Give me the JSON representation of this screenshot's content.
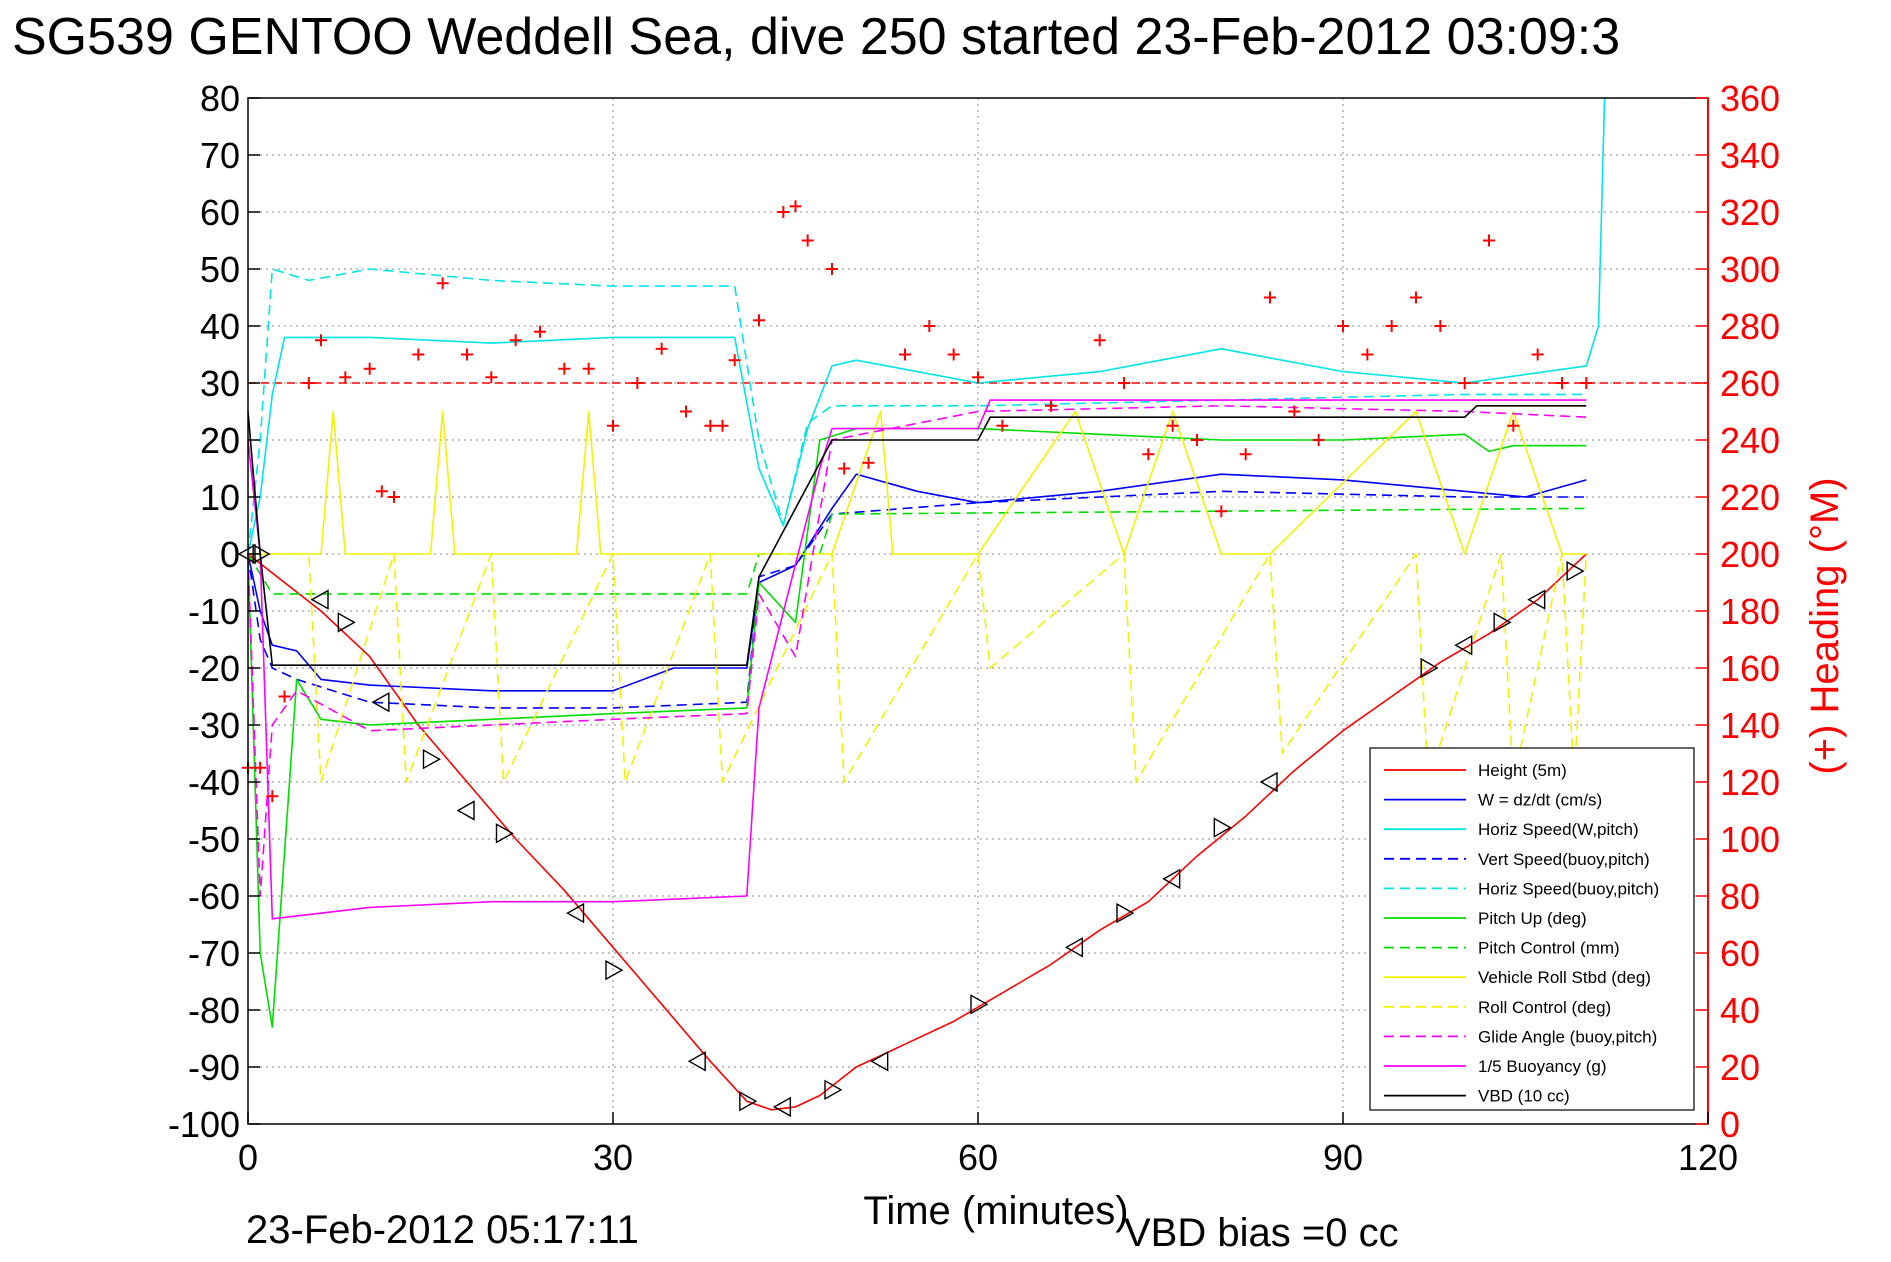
{
  "chart_data": {
    "type": "line",
    "title": "SG539 GENTOO Weddell Sea, dive 250 started 23-Feb-2012 03:09:3",
    "xlabel": "Time (minutes)",
    "ylabel_right": "(+) Heading (°M)",
    "footer_timestamp": "23-Feb-2012 05:17:11",
    "footer_vbd": "VBD bias =0 cc",
    "xlim": [
      0,
      120
    ],
    "ylim": [
      -100,
      80
    ],
    "y2lim": [
      0,
      360
    ],
    "grid": true,
    "legend_position": "bottom-right",
    "x_ticks": [
      "0",
      "30",
      "60",
      "90",
      "120"
    ],
    "y_ticks": [
      "80",
      "70",
      "60",
      "50",
      "40",
      "30",
      "20",
      "10",
      "0",
      "-10",
      "-20",
      "-30",
      "-40",
      "-50",
      "-60",
      "-70",
      "-80",
      "-90",
      "-100"
    ],
    "y2_ticks": [
      "360",
      "340",
      "320",
      "300",
      "280",
      "260",
      "240",
      "220",
      "200",
      "180",
      "160",
      "140",
      "120",
      "100",
      "80",
      "60",
      "40",
      "20",
      "0"
    ],
    "colors": {
      "red": "#ff0000",
      "blue": "#0000ff",
      "cyan": "#00e5e5",
      "green": "#00dd00",
      "yellow": "#f2f200",
      "magenta": "#ff00ff",
      "black": "#000000"
    },
    "series": [
      {
        "name": "Height (5m)",
        "color": "#ff0000",
        "dash": false,
        "x": [
          0,
          3,
          6,
          10,
          14,
          18,
          22,
          26,
          30,
          34,
          38,
          41,
          43,
          45,
          47,
          50,
          54,
          58,
          62,
          66,
          70,
          74,
          78,
          82,
          86,
          90,
          94,
          98,
          102,
          106,
          110
        ],
        "y": [
          0,
          -5,
          -10,
          -18,
          -30,
          -40,
          -50,
          -59,
          -69,
          -79,
          -89,
          -96,
          -97.5,
          -97,
          -95,
          -90,
          -86,
          -82,
          -77,
          -72,
          -66,
          -61,
          -53,
          -46,
          -38,
          -31,
          -25,
          -19,
          -14,
          -8,
          0
        ]
      },
      {
        "name": "W = dz/dt (cm/s)",
        "color": "#0000ff",
        "dash": false,
        "x": [
          0,
          1,
          2,
          4,
          6,
          10,
          20,
          30,
          35,
          41,
          42,
          45,
          48,
          50,
          55,
          60,
          70,
          80,
          90,
          100,
          105,
          110
        ],
        "y": [
          0,
          -10,
          -16,
          -17,
          -22,
          -23,
          -24,
          -24,
          -20,
          -20,
          -5,
          -2,
          8,
          14,
          11,
          9,
          11,
          14,
          13,
          11,
          10,
          13
        ]
      },
      {
        "name": "Horiz Speed(W,pitch)",
        "color": "#00e5e5",
        "dash": false,
        "x": [
          0,
          1,
          2,
          3,
          10,
          20,
          30,
          40,
          42,
          44,
          46,
          48,
          50,
          60,
          70,
          80,
          90,
          100,
          110,
          111,
          111.5
        ],
        "y": [
          0,
          10,
          28,
          38,
          38,
          37,
          38,
          38,
          15,
          5,
          22,
          33,
          34,
          30,
          32,
          36,
          32,
          30,
          33,
          40,
          80
        ]
      },
      {
        "name": "Vert Speed(buoy,pitch)",
        "color": "#0000ff",
        "dash": true,
        "x": [
          0,
          1,
          2,
          4,
          10,
          20,
          30,
          41,
          42,
          45,
          48,
          60,
          80,
          100,
          110
        ],
        "y": [
          0,
          -15,
          -20,
          -22,
          -26,
          -27,
          -27,
          -26,
          -4,
          -2,
          7,
          9,
          11,
          10,
          10
        ]
      },
      {
        "name": "Horiz Speed(buoy,pitch)",
        "color": "#00e5e5",
        "dash": true,
        "x": [
          0,
          1,
          2,
          5,
          10,
          20,
          30,
          40,
          42,
          44,
          46,
          48,
          60,
          80,
          100,
          110
        ],
        "y": [
          0,
          20,
          50,
          48,
          50,
          48,
          47,
          47,
          20,
          5,
          23,
          26,
          26,
          27,
          28,
          28
        ]
      },
      {
        "name": "Pitch Up (deg)",
        "color": "#00dd00",
        "dash": false,
        "x": [
          0,
          1,
          2,
          4,
          6,
          10,
          20,
          30,
          41,
          42,
          45,
          47,
          50,
          60,
          70,
          80,
          90,
          100,
          102,
          104,
          110
        ],
        "y": [
          0,
          -70,
          -83,
          -22,
          -29,
          -30,
          -29,
          -28,
          -27,
          -5,
          -12,
          20,
          22,
          22,
          21,
          20,
          20,
          21,
          18,
          19,
          19
        ]
      },
      {
        "name": "Pitch Control (mm)",
        "color": "#00dd00",
        "dash": true,
        "x": [
          0,
          2,
          3,
          40,
          41,
          42,
          47,
          48,
          110
        ],
        "y": [
          0,
          -7,
          -7,
          -7,
          -7,
          0,
          0,
          7,
          8
        ]
      },
      {
        "name": "Vehicle Roll Stbd (deg)",
        "color": "#f2f200",
        "dash": false,
        "x": [
          0,
          2,
          6,
          7,
          8,
          12,
          15,
          16,
          17,
          20,
          27,
          28,
          29,
          31,
          38,
          40,
          48,
          52,
          53,
          60,
          68,
          72,
          76,
          80,
          84,
          96,
          100,
          104,
          108,
          110
        ],
        "y": [
          0,
          0,
          0,
          25,
          0,
          0,
          0,
          25,
          0,
          0,
          0,
          25,
          0,
          0,
          0,
          0,
          0,
          25,
          0,
          0,
          25,
          0,
          25,
          0,
          0,
          25,
          0,
          25,
          0,
          0
        ]
      },
      {
        "name": "Roll Control (deg)",
        "color": "#f2f200",
        "dash": true,
        "x": [
          0,
          2,
          5,
          6,
          12,
          13,
          20,
          21,
          30,
          31,
          38,
          39,
          48,
          49,
          60,
          61,
          72,
          73,
          84,
          85,
          96,
          97,
          103,
          104,
          108,
          109,
          110
        ],
        "y": [
          0,
          0,
          0,
          -40,
          0,
          -40,
          0,
          -40,
          0,
          -40,
          0,
          -40,
          0,
          -40,
          0,
          -20,
          0,
          -40,
          0,
          -35,
          0,
          -40,
          0,
          -40,
          0,
          -40,
          0
        ]
      },
      {
        "name": "Glide Angle (buoy,pitch)",
        "color": "#ff00ff",
        "dash": true,
        "x": [
          0,
          1,
          2,
          4,
          10,
          20,
          30,
          41,
          42,
          45,
          48,
          60,
          80,
          100,
          110
        ],
        "y": [
          0,
          -60,
          -30,
          -24,
          -31,
          -30,
          -29,
          -28,
          -7,
          -18,
          20,
          25,
          26,
          25,
          24
        ]
      },
      {
        "name": "1/5 Buoyancy (g)",
        "color": "#ff00ff",
        "dash": false,
        "x": [
          0,
          1,
          2,
          10,
          20,
          30,
          41,
          42,
          47,
          48,
          60,
          61,
          100,
          110
        ],
        "y": [
          20,
          0,
          -64,
          -62,
          -61,
          -61,
          -60,
          -27,
          15,
          22,
          22,
          27,
          27,
          27
        ]
      },
      {
        "name": "VBD (10 cc)",
        "color": "#000000",
        "dash": false,
        "x": [
          0,
          1,
          2,
          41,
          42,
          48,
          60,
          61,
          100,
          101,
          110
        ],
        "y": [
          25,
          0,
          -19.5,
          -19.5,
          -4,
          20,
          20,
          24,
          24,
          26,
          26
        ]
      }
    ],
    "heading": {
      "name": "(+) Heading",
      "axis": "right",
      "color": "#ff0000",
      "x": [
        0,
        1,
        2,
        3,
        5,
        6,
        8,
        10,
        11,
        12,
        14,
        16,
        18,
        20,
        22,
        24,
        26,
        28,
        30,
        32,
        34,
        36,
        38,
        39,
        40,
        42,
        44,
        45,
        46,
        48,
        49,
        51,
        54,
        56,
        58,
        60,
        62,
        66,
        70,
        72,
        74,
        76,
        78,
        80,
        82,
        84,
        86,
        88,
        90,
        92,
        94,
        96,
        98,
        100,
        102,
        104,
        106,
        108,
        110
      ],
      "y": [
        125,
        125,
        115,
        150,
        260,
        275,
        262,
        265,
        222,
        220,
        270,
        295,
        270,
        262,
        275,
        278,
        265,
        265,
        245,
        260,
        272,
        250,
        245,
        245,
        268,
        282,
        320,
        322,
        310,
        300,
        230,
        232,
        270,
        280,
        270,
        262,
        245,
        252,
        275,
        260,
        235,
        245,
        240,
        215,
        235,
        290,
        250,
        240,
        280,
        270,
        280,
        290,
        280,
        260,
        310,
        245,
        270,
        260,
        260
      ]
    },
    "reference_line": {
      "axis": "right",
      "value": 260,
      "color": "#ff0000",
      "dash": true
    },
    "markers": {
      "type": "triangles",
      "color": "#000000",
      "x": [
        0,
        1,
        6,
        8,
        11,
        15,
        18,
        21,
        27,
        30,
        37,
        41,
        44,
        48,
        52,
        60,
        68,
        72,
        76,
        80,
        84,
        97,
        100,
        103,
        106,
        109
      ],
      "y": [
        0,
        0,
        -8,
        -12,
        -26,
        -36,
        -45,
        -49,
        -63,
        -73,
        -89,
        -96,
        -97,
        -94,
        -89,
        -79,
        -69,
        -63,
        -57,
        -48,
        -40,
        -20,
        -16,
        -12,
        -8,
        -3
      ]
    }
  }
}
